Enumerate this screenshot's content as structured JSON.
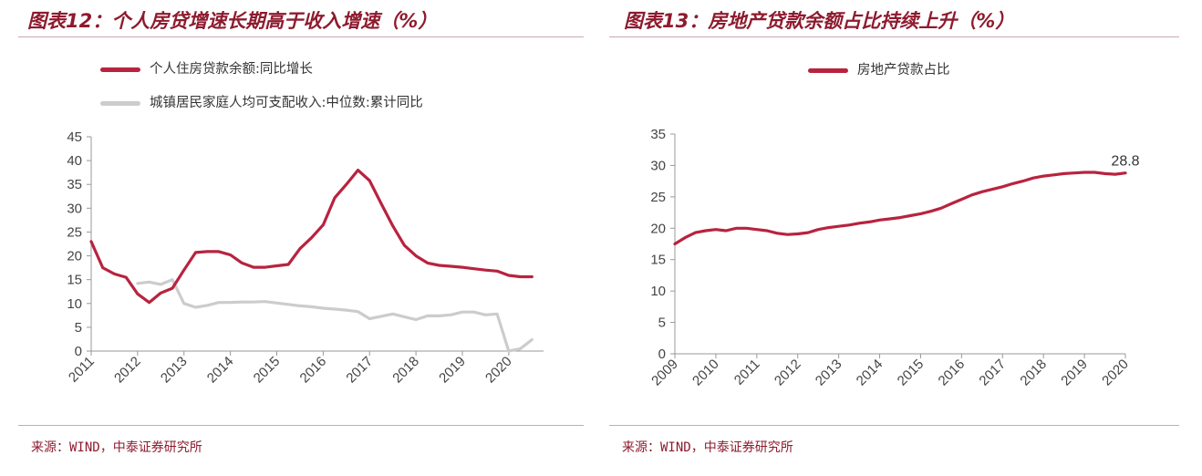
{
  "left": {
    "title": "图表12：个人房贷增速长期高于收入增速（%）",
    "source": "来源：WIND，中泰证券研究所",
    "series_names": [
      "个人住房贷款余额:同比增长",
      "城镇居民家庭人均可支配收入:中位数:累计同比"
    ],
    "colors": [
      "#b8233f",
      "#cccccc"
    ]
  },
  "right": {
    "title": "图表13：房地产贷款余额占比持续上升（%）",
    "source": "来源：WIND，中泰证券研究所",
    "series_names": [
      "房地产贷款占比"
    ],
    "colors": [
      "#b8233f"
    ],
    "end_label": "28.8"
  },
  "chart_data": [
    {
      "type": "line",
      "title": "图表12：个人房贷增速长期高于收入增速（%）",
      "ylim": [
        0,
        45
      ],
      "yticks": [
        0,
        5,
        10,
        15,
        20,
        25,
        30,
        35,
        40,
        45
      ],
      "xlim": [
        2011,
        2020.75
      ],
      "xticks": [
        "2011",
        "2012",
        "2013",
        "2014",
        "2015",
        "2016",
        "2017",
        "2018",
        "2019",
        "2020"
      ],
      "legend_position": "top-left",
      "series": [
        {
          "name": "个人住房贷款余额:同比增长",
          "x": [
            2011.0,
            2011.25,
            2011.5,
            2011.75,
            2012.0,
            2012.25,
            2012.5,
            2012.75,
            2013.0,
            2013.25,
            2013.5,
            2013.75,
            2014.0,
            2014.25,
            2014.5,
            2014.75,
            2015.0,
            2015.25,
            2015.5,
            2015.75,
            2016.0,
            2016.25,
            2016.5,
            2016.75,
            2017.0,
            2017.25,
            2017.5,
            2017.75,
            2018.0,
            2018.25,
            2018.5,
            2018.75,
            2019.0,
            2019.25,
            2019.5,
            2019.75,
            2020.0,
            2020.25,
            2020.5
          ],
          "y": [
            23.0,
            17.5,
            16.2,
            15.5,
            12.0,
            10.2,
            12.2,
            13.2,
            17.0,
            20.7,
            20.9,
            20.9,
            20.2,
            18.5,
            17.6,
            17.6,
            17.9,
            18.2,
            21.5,
            23.8,
            26.5,
            32.2,
            35.0,
            38.0,
            35.8,
            31.0,
            26.3,
            22.2,
            20.0,
            18.5,
            18.0,
            17.8,
            17.6,
            17.3,
            17.0,
            16.8,
            15.9,
            15.6,
            15.6
          ]
        },
        {
          "name": "城镇居民家庭人均可支配收入:中位数:累计同比",
          "x": [
            2012.0,
            2012.25,
            2012.5,
            2012.75,
            2013.0,
            2013.25,
            2013.5,
            2013.75,
            2014.0,
            2014.25,
            2014.5,
            2014.75,
            2015.0,
            2015.25,
            2015.5,
            2015.75,
            2016.0,
            2016.25,
            2016.5,
            2016.75,
            2017.0,
            2017.25,
            2017.5,
            2017.75,
            2018.0,
            2018.25,
            2018.5,
            2018.75,
            2019.0,
            2019.25,
            2019.5,
            2019.75,
            2020.0,
            2020.25,
            2020.5
          ],
          "y": [
            14.2,
            14.5,
            14.0,
            15.0,
            10.0,
            9.2,
            9.6,
            10.2,
            10.2,
            10.3,
            10.3,
            10.4,
            10.1,
            9.8,
            9.5,
            9.3,
            9.0,
            8.8,
            8.6,
            8.3,
            6.8,
            7.3,
            7.8,
            7.2,
            6.6,
            7.4,
            7.4,
            7.6,
            8.2,
            8.2,
            7.6,
            7.8,
            0.0,
            0.5,
            2.4
          ]
        }
      ]
    },
    {
      "type": "line",
      "title": "图表13：房地产贷款余额占比持续上升（%）",
      "ylim": [
        0,
        35
      ],
      "yticks": [
        0,
        5,
        10,
        15,
        20,
        25,
        30,
        35
      ],
      "xlim": [
        2009,
        2020
      ],
      "xticks": [
        "2009",
        "2010",
        "2011",
        "2012",
        "2013",
        "2014",
        "2015",
        "2016",
        "2017",
        "2018",
        "2019",
        "2020"
      ],
      "legend_position": "top-center",
      "series": [
        {
          "name": "房地产贷款占比",
          "x": [
            2009.0,
            2009.25,
            2009.5,
            2009.75,
            2010.0,
            2010.25,
            2010.5,
            2010.75,
            2011.0,
            2011.25,
            2011.5,
            2011.75,
            2012.0,
            2012.25,
            2012.5,
            2012.75,
            2013.0,
            2013.25,
            2013.5,
            2013.75,
            2014.0,
            2014.25,
            2014.5,
            2014.75,
            2015.0,
            2015.25,
            2015.5,
            2015.75,
            2016.0,
            2016.25,
            2016.5,
            2016.75,
            2017.0,
            2017.25,
            2017.5,
            2017.75,
            2018.0,
            2018.25,
            2018.5,
            2018.75,
            2019.0,
            2019.25,
            2019.5,
            2019.75,
            2020.0
          ],
          "y": [
            17.5,
            18.5,
            19.3,
            19.6,
            19.8,
            19.6,
            20.0,
            20.0,
            19.8,
            19.6,
            19.2,
            19.0,
            19.1,
            19.3,
            19.8,
            20.1,
            20.3,
            20.5,
            20.8,
            21.0,
            21.3,
            21.5,
            21.7,
            22.0,
            22.3,
            22.7,
            23.2,
            23.9,
            24.6,
            25.3,
            25.8,
            26.2,
            26.6,
            27.1,
            27.5,
            28.0,
            28.3,
            28.5,
            28.7,
            28.8,
            28.9,
            28.9,
            28.7,
            28.6,
            28.8
          ]
        }
      ]
    }
  ]
}
